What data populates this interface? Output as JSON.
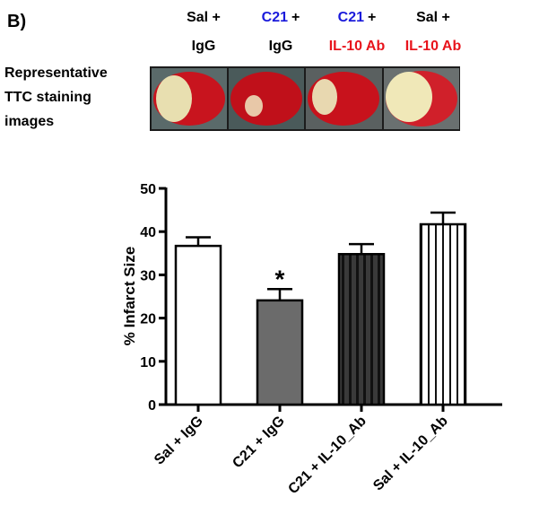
{
  "panel_label": "B)",
  "image_panel": {
    "label_lines": [
      "Representative",
      "TTC staining",
      "images"
    ],
    "headers": [
      [
        [
          {
            "text": "Sal +",
            "color": "#000000"
          }
        ],
        [
          {
            "text": "IgG",
            "color": "#000000"
          }
        ]
      ],
      [
        [
          {
            "text": "C21",
            "color": "#1a1adb"
          },
          {
            "text": "+",
            "color": "#000000"
          }
        ],
        [
          {
            "text": "IgG",
            "color": "#000000"
          }
        ]
      ],
      [
        [
          {
            "text": "C21",
            "color": "#1a1adb"
          },
          {
            "text": "+",
            "color": "#000000"
          }
        ],
        [
          {
            "text": "IL-10 Ab",
            "color": "#e8141c"
          }
        ]
      ],
      [
        [
          {
            "text": "Sal +",
            "color": "#000000"
          }
        ],
        [
          {
            "text": "IL-10 Ab",
            "color": "#e8141c"
          }
        ]
      ]
    ]
  },
  "chart_data": {
    "type": "bar",
    "y_label": "% Infarct Size",
    "categories": [
      "Sal + IgG",
      "C21 + IgG",
      "C21 + IL-10_Ab",
      "Sal + IL-10_Ab"
    ],
    "values": [
      36.7,
      24.1,
      34.8,
      41.7
    ],
    "errors": [
      2.0,
      2.6,
      2.3,
      2.7
    ],
    "fills": [
      "#ffffff",
      "#6b6b6b",
      "#3a3a3a",
      "#ffffff"
    ],
    "stripes": [
      false,
      false,
      true,
      true
    ],
    "significance": [
      null,
      "*",
      null,
      null
    ],
    "ylim": [
      0,
      50
    ],
    "yticks": [
      0,
      10,
      20,
      30,
      40,
      50
    ]
  }
}
